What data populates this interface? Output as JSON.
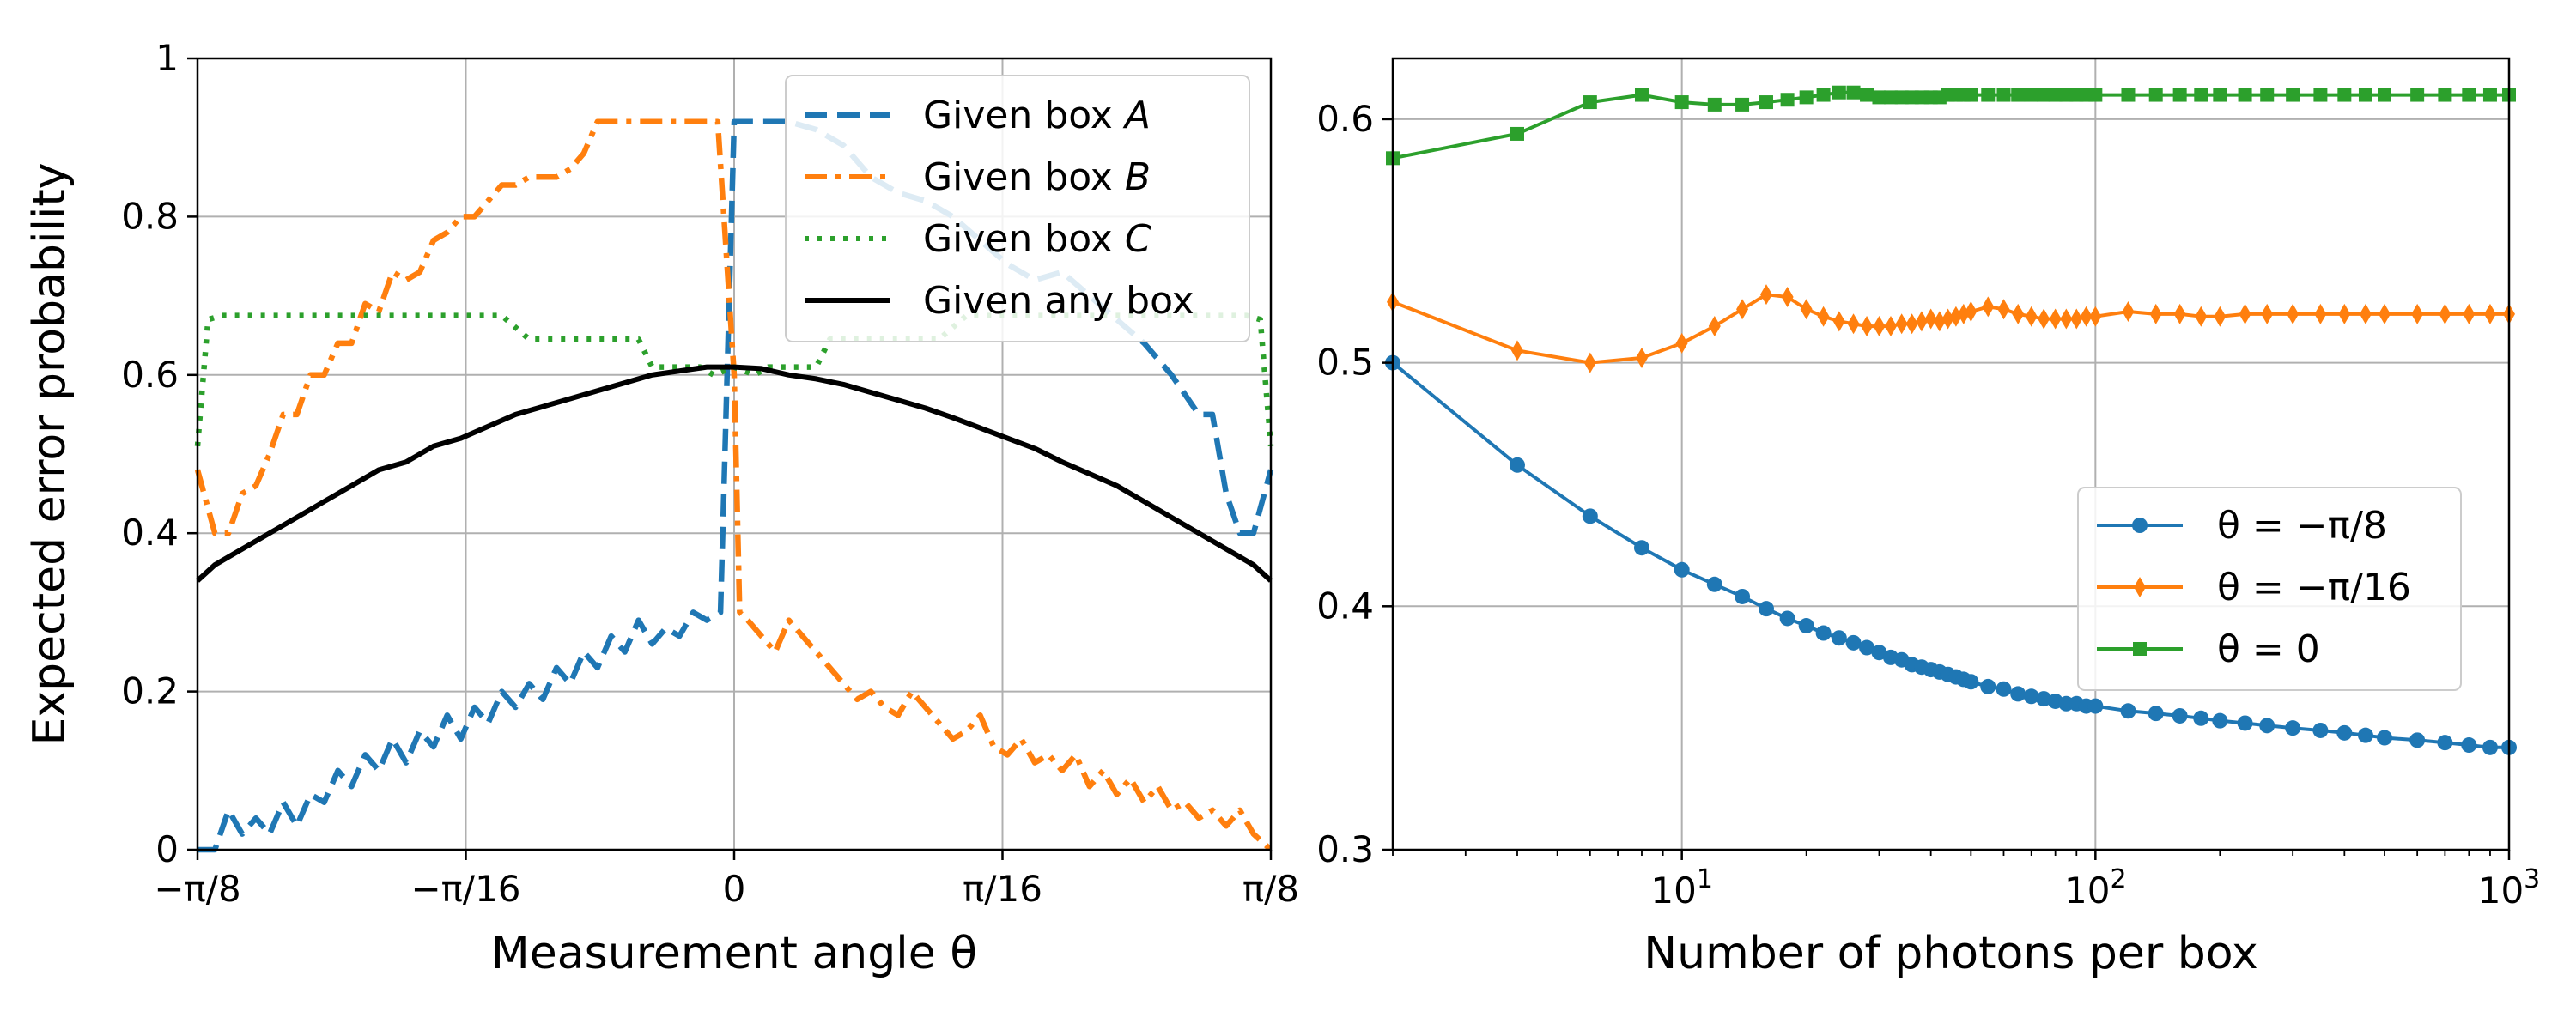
{
  "chart_data": [
    {
      "type": "line",
      "xlabel": "Measurement angle θ",
      "ylabel": "Expected error probability",
      "xlim": [
        -0.3927,
        0.3927
      ],
      "ylim": [
        0,
        1
      ],
      "xtick_values": [
        -0.3927,
        -0.19635,
        0,
        0.19635,
        0.3927
      ],
      "xtick_labels": [
        "−π/8",
        "−π/16",
        "0",
        "π/16",
        "π/8"
      ],
      "ytick_values": [
        0,
        0.2,
        0.4,
        0.6,
        0.8,
        1
      ],
      "ytick_labels": [
        "0",
        "0.2",
        "0.4",
        "0.6",
        "0.8",
        "1"
      ],
      "grid": true,
      "legend_position": "upper right",
      "series": [
        {
          "name": "Given box A",
          "color": "#1f77b4",
          "style": "dashed",
          "x": [
            -0.3927,
            -0.38,
            -0.37,
            -0.36,
            -0.35,
            -0.34,
            -0.33,
            -0.32,
            -0.31,
            -0.3,
            -0.29,
            -0.28,
            -0.27,
            -0.26,
            -0.25,
            -0.24,
            -0.23,
            -0.22,
            -0.21,
            -0.2,
            -0.19,
            -0.18,
            -0.17,
            -0.16,
            -0.15,
            -0.14,
            -0.13,
            -0.12,
            -0.11,
            -0.1,
            -0.09,
            -0.08,
            -0.07,
            -0.06,
            -0.05,
            -0.04,
            -0.03,
            -0.02,
            -0.01,
            0.0,
            0.012,
            0.02,
            0.04,
            0.06,
            0.08,
            0.1,
            0.12,
            0.14,
            0.16,
            0.18,
            0.2,
            0.22,
            0.24,
            0.26,
            0.28,
            0.3,
            0.32,
            0.34,
            0.35,
            0.36,
            0.37,
            0.38,
            0.3927
          ],
          "y": [
            0,
            0,
            0.05,
            0.02,
            0.04,
            0.02,
            0.06,
            0.03,
            0.07,
            0.06,
            0.1,
            0.08,
            0.12,
            0.1,
            0.14,
            0.11,
            0.15,
            0.13,
            0.17,
            0.14,
            0.18,
            0.16,
            0.2,
            0.18,
            0.21,
            0.19,
            0.23,
            0.21,
            0.25,
            0.23,
            0.27,
            0.25,
            0.29,
            0.26,
            0.28,
            0.27,
            0.3,
            0.29,
            0.3,
            0.92,
            0.92,
            0.92,
            0.92,
            0.91,
            0.89,
            0.85,
            0.83,
            0.82,
            0.8,
            0.77,
            0.74,
            0.72,
            0.73,
            0.7,
            0.67,
            0.64,
            0.6,
            0.55,
            0.55,
            0.45,
            0.4,
            0.4,
            0.48
          ]
        },
        {
          "name": "Given box B",
          "color": "#ff7f0e",
          "style": "dashdot",
          "x": [
            -0.3927,
            -0.38,
            -0.37,
            -0.36,
            -0.35,
            -0.34,
            -0.33,
            -0.32,
            -0.31,
            -0.3,
            -0.29,
            -0.28,
            -0.27,
            -0.26,
            -0.25,
            -0.24,
            -0.23,
            -0.22,
            -0.21,
            -0.2,
            -0.19,
            -0.18,
            -0.17,
            -0.16,
            -0.15,
            -0.14,
            -0.13,
            -0.12,
            -0.11,
            -0.1,
            -0.09,
            -0.08,
            -0.07,
            -0.06,
            -0.05,
            -0.04,
            -0.03,
            -0.02,
            -0.012,
            0.0,
            0.004,
            0.01,
            0.02,
            0.03,
            0.04,
            0.05,
            0.06,
            0.07,
            0.08,
            0.09,
            0.1,
            0.11,
            0.12,
            0.13,
            0.14,
            0.15,
            0.16,
            0.17,
            0.18,
            0.19,
            0.2,
            0.21,
            0.22,
            0.23,
            0.24,
            0.25,
            0.26,
            0.27,
            0.28,
            0.29,
            0.3,
            0.31,
            0.32,
            0.33,
            0.34,
            0.35,
            0.36,
            0.37,
            0.38,
            0.3927
          ],
          "y": [
            0.48,
            0.4,
            0.4,
            0.45,
            0.46,
            0.5,
            0.55,
            0.55,
            0.6,
            0.6,
            0.64,
            0.64,
            0.69,
            0.68,
            0.73,
            0.72,
            0.73,
            0.77,
            0.78,
            0.8,
            0.8,
            0.82,
            0.84,
            0.84,
            0.85,
            0.85,
            0.85,
            0.86,
            0.88,
            0.92,
            0.92,
            0.92,
            0.92,
            0.92,
            0.92,
            0.92,
            0.92,
            0.92,
            0.92,
            0.6,
            0.3,
            0.29,
            0.27,
            0.25,
            0.29,
            0.27,
            0.25,
            0.23,
            0.21,
            0.19,
            0.2,
            0.18,
            0.17,
            0.2,
            0.18,
            0.16,
            0.14,
            0.15,
            0.17,
            0.13,
            0.12,
            0.14,
            0.11,
            0.12,
            0.1,
            0.12,
            0.08,
            0.1,
            0.07,
            0.09,
            0.06,
            0.08,
            0.05,
            0.06,
            0.04,
            0.05,
            0.03,
            0.05,
            0.02,
            0
          ]
        },
        {
          "name": "Given box C",
          "color": "#2ca02c",
          "style": "dotted",
          "x": [
            -0.3927,
            -0.385,
            -0.375,
            -0.28,
            -0.17,
            -0.15,
            -0.07,
            -0.06,
            -0.025,
            -0.015,
            0.0,
            0.015,
            0.025,
            0.06,
            0.07,
            0.15,
            0.17,
            0.28,
            0.375,
            0.385,
            0.3927
          ],
          "y": [
            0.51,
            0.67,
            0.675,
            0.675,
            0.675,
            0.645,
            0.645,
            0.61,
            0.61,
            0.6,
            0.61,
            0.6,
            0.61,
            0.61,
            0.645,
            0.645,
            0.675,
            0.675,
            0.675,
            0.67,
            0.51
          ]
        },
        {
          "name": "Given any box",
          "color": "#000000",
          "style": "solid",
          "x": [
            -0.3927,
            -0.38,
            -0.36,
            -0.34,
            -0.32,
            -0.3,
            -0.28,
            -0.26,
            -0.24,
            -0.22,
            -0.2,
            -0.18,
            -0.16,
            -0.14,
            -0.12,
            -0.1,
            -0.08,
            -0.06,
            -0.04,
            -0.02,
            0.0,
            0.02,
            0.04,
            0.06,
            0.08,
            0.1,
            0.12,
            0.14,
            0.16,
            0.18,
            0.2,
            0.22,
            0.24,
            0.26,
            0.28,
            0.3,
            0.32,
            0.34,
            0.36,
            0.38,
            0.3927
          ],
          "y": [
            0.34,
            0.36,
            0.38,
            0.4,
            0.42,
            0.44,
            0.46,
            0.48,
            0.49,
            0.51,
            0.52,
            0.535,
            0.55,
            0.56,
            0.57,
            0.58,
            0.59,
            0.6,
            0.605,
            0.61,
            0.61,
            0.608,
            0.6,
            0.595,
            0.588,
            0.578,
            0.568,
            0.558,
            0.546,
            0.533,
            0.52,
            0.507,
            0.49,
            0.475,
            0.46,
            0.44,
            0.42,
            0.4,
            0.38,
            0.36,
            0.34
          ]
        }
      ]
    },
    {
      "type": "line",
      "xlabel": "Number of photons per box",
      "ylabel": "",
      "xscale": "log",
      "xlim": [
        2,
        1000
      ],
      "ylim": [
        0.3,
        0.625
      ],
      "xtick_values": [
        10,
        100,
        1000
      ],
      "xtick_labels": [
        "10",
        "10",
        "10"
      ],
      "xtick_exponents": [
        "1",
        "2",
        "3"
      ],
      "ytick_values": [
        0.3,
        0.4,
        0.5,
        0.6
      ],
      "ytick_labels": [
        "0.3",
        "0.4",
        "0.5",
        "0.6"
      ],
      "grid": true,
      "legend_position": "center right",
      "series": [
        {
          "name": "θ = −π/8",
          "color": "#1f77b4",
          "marker": "circle",
          "x": [
            2,
            4,
            6,
            8,
            10,
            12,
            14,
            16,
            18,
            20,
            22,
            24,
            26,
            28,
            30,
            32,
            34,
            36,
            38,
            40,
            42,
            44,
            46,
            48,
            50,
            55,
            60,
            65,
            70,
            75,
            80,
            85,
            90,
            95,
            100,
            120,
            140,
            160,
            180,
            200,
            230,
            260,
            300,
            350,
            400,
            450,
            500,
            600,
            700,
            800,
            900,
            1000
          ],
          "y": [
            0.5,
            0.458,
            0.437,
            0.424,
            0.415,
            0.409,
            0.404,
            0.399,
            0.395,
            0.392,
            0.389,
            0.387,
            0.385,
            0.383,
            0.381,
            0.379,
            0.378,
            0.376,
            0.375,
            0.374,
            0.373,
            0.372,
            0.371,
            0.37,
            0.369,
            0.367,
            0.366,
            0.364,
            0.363,
            0.362,
            0.361,
            0.36,
            0.36,
            0.359,
            0.359,
            0.357,
            0.356,
            0.355,
            0.354,
            0.353,
            0.352,
            0.351,
            0.35,
            0.349,
            0.348,
            0.347,
            0.346,
            0.345,
            0.344,
            0.343,
            0.342,
            0.342
          ]
        },
        {
          "name": "θ = −π/16",
          "color": "#ff7f0e",
          "marker": "diamond",
          "x": [
            2,
            4,
            6,
            8,
            10,
            12,
            14,
            16,
            18,
            20,
            22,
            24,
            26,
            28,
            30,
            32,
            34,
            36,
            38,
            40,
            42,
            44,
            46,
            48,
            50,
            55,
            60,
            65,
            70,
            75,
            80,
            85,
            90,
            95,
            100,
            120,
            140,
            160,
            180,
            200,
            230,
            260,
            300,
            350,
            400,
            450,
            500,
            600,
            700,
            800,
            900,
            1000
          ],
          "y": [
            0.525,
            0.505,
            0.5,
            0.502,
            0.508,
            0.515,
            0.522,
            0.528,
            0.527,
            0.522,
            0.519,
            0.517,
            0.516,
            0.515,
            0.515,
            0.515,
            0.516,
            0.516,
            0.517,
            0.518,
            0.517,
            0.518,
            0.519,
            0.52,
            0.521,
            0.523,
            0.522,
            0.52,
            0.519,
            0.518,
            0.518,
            0.518,
            0.518,
            0.519,
            0.519,
            0.521,
            0.52,
            0.52,
            0.519,
            0.519,
            0.52,
            0.52,
            0.52,
            0.52,
            0.52,
            0.52,
            0.52,
            0.52,
            0.52,
            0.52,
            0.52,
            0.52
          ]
        },
        {
          "name": "θ = 0",
          "color": "#2ca02c",
          "marker": "square",
          "x": [
            2,
            4,
            6,
            8,
            10,
            12,
            14,
            16,
            18,
            20,
            22,
            24,
            26,
            28,
            30,
            32,
            34,
            36,
            38,
            40,
            42,
            44,
            46,
            48,
            50,
            55,
            60,
            65,
            70,
            75,
            80,
            85,
            90,
            95,
            100,
            120,
            140,
            160,
            180,
            200,
            230,
            260,
            300,
            350,
            400,
            450,
            500,
            600,
            700,
            800,
            900,
            1000
          ],
          "y": [
            0.584,
            0.594,
            0.607,
            0.61,
            0.607,
            0.606,
            0.606,
            0.607,
            0.608,
            0.609,
            0.61,
            0.611,
            0.611,
            0.61,
            0.609,
            0.609,
            0.609,
            0.609,
            0.609,
            0.609,
            0.609,
            0.61,
            0.61,
            0.61,
            0.61,
            0.61,
            0.61,
            0.61,
            0.61,
            0.61,
            0.61,
            0.61,
            0.61,
            0.61,
            0.61,
            0.61,
            0.61,
            0.61,
            0.61,
            0.61,
            0.61,
            0.61,
            0.61,
            0.61,
            0.61,
            0.61,
            0.61,
            0.61,
            0.61,
            0.61,
            0.61,
            0.61
          ]
        }
      ]
    }
  ]
}
